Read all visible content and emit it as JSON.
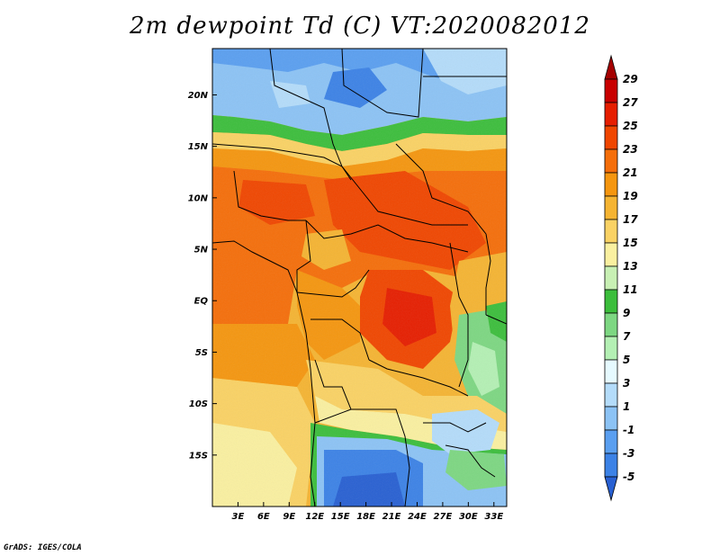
{
  "title": "2m dewpoint Td (C) VT:2020082012",
  "credit": "GrADS: IGES/COLA",
  "map": {
    "lon_min": 0,
    "lon_max": 34.5,
    "lat_min": -20,
    "lat_max": 24.5,
    "lat_ticks": [
      {
        "value": 20,
        "label": "20N"
      },
      {
        "value": 15,
        "label": "15N"
      },
      {
        "value": 10,
        "label": "10N"
      },
      {
        "value": 5,
        "label": "5N"
      },
      {
        "value": 0,
        "label": "EQ"
      },
      {
        "value": -5,
        "label": "5S"
      },
      {
        "value": -10,
        "label": "10S"
      },
      {
        "value": -15,
        "label": "15S"
      }
    ],
    "lon_ticks": [
      {
        "value": 3,
        "label": "3E"
      },
      {
        "value": 6,
        "label": "6E"
      },
      {
        "value": 9,
        "label": "9E"
      },
      {
        "value": 12,
        "label": "12E"
      },
      {
        "value": 15,
        "label": "15E"
      },
      {
        "value": 18,
        "label": "18E"
      },
      {
        "value": 21,
        "label": "21E"
      },
      {
        "value": 24,
        "label": "24E"
      },
      {
        "value": 27,
        "label": "27E"
      },
      {
        "value": 30,
        "label": "30E"
      },
      {
        "value": 33,
        "label": "33E"
      }
    ]
  },
  "colorbar": {
    "levels": [
      "29",
      "27",
      "25",
      "23",
      "21",
      "19",
      "17",
      "15",
      "13",
      "11",
      "9",
      "7",
      "5",
      "3",
      "1",
      "-1",
      "-3",
      "-5"
    ],
    "colors": [
      "#a50000",
      "#c80000",
      "#e61e00",
      "#f04600",
      "#f56e0a",
      "#f5960f",
      "#f5b432",
      "#fad264",
      "#faf0a0",
      "#c8f0b4",
      "#3cbe3c",
      "#7dd782",
      "#b4f0b4",
      "#e6faff",
      "#b4dcfa",
      "#8cc3f5",
      "#5a9ff0",
      "#3c82e6",
      "#2860d2"
    ]
  }
}
